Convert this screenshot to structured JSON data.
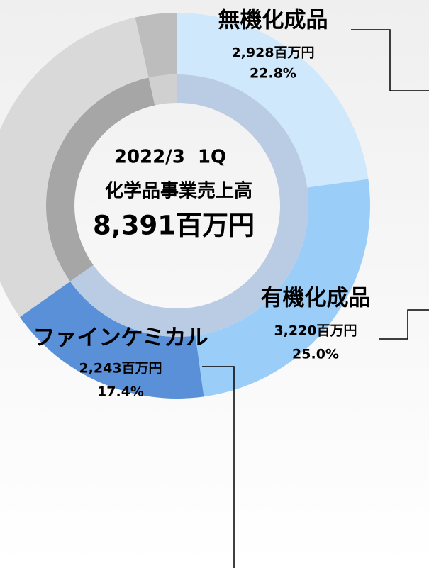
{
  "chart_data": {
    "type": "donut",
    "center_text": [
      "2022/3  1Q",
      "化学品事業売上高",
      "8,391百万円"
    ],
    "rings": [
      {
        "categories": [
          "無機化成品",
          "有機化成品",
          "ファインケミカル",
          null,
          null
        ],
        "values": [
          22.8,
          25.0,
          17.4,
          31.3,
          3.5
        ],
        "value_labels": [
          "22.8%",
          "25.0%",
          "17.4%",
          null,
          null
        ],
        "amounts": [
          2928,
          3220,
          2243,
          null,
          null
        ],
        "amount_labels": [
          "2,928百万円",
          "3,220百万円",
          "2,243百万円",
          null,
          null
        ],
        "colors": [
          "#cfe8fb",
          "#9acdf8",
          "#5a90d8",
          "#d9d9d9",
          "#bdbdbd"
        ]
      },
      {
        "values": [
          65.2,
          31.3,
          3.5
        ],
        "colors": [
          "#b9cce4",
          "#a6a6a6",
          "#d0d0d0"
        ]
      }
    ]
  }
}
